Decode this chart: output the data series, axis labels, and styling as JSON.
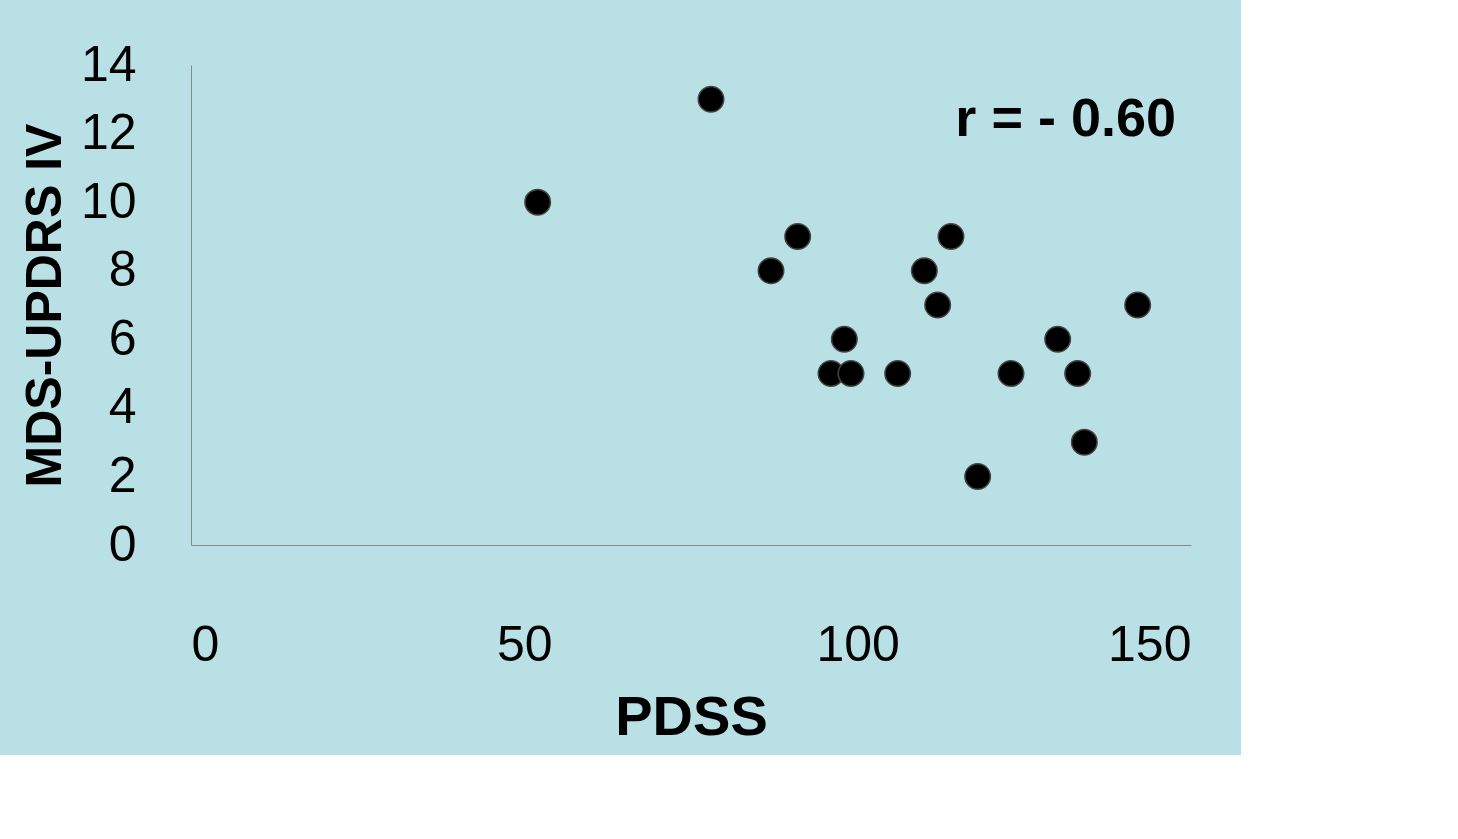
{
  "chart_data": {
    "type": "scatter",
    "xlabel": "PDSS",
    "ylabel": "MDS-UPDRS IV",
    "x": [
      52,
      78,
      91,
      87,
      98,
      96,
      99,
      106,
      110,
      112,
      114,
      118,
      123,
      130,
      133,
      134,
      142
    ],
    "values": [
      10,
      13,
      9,
      8,
      6,
      5,
      5,
      5,
      8,
      7,
      9,
      2,
      5,
      6,
      5,
      3,
      7
    ],
    "color": "#000000",
    "marker": "circle",
    "xlim": [
      0,
      150
    ],
    "xticks": [
      0,
      50,
      100,
      150
    ],
    "ylim": [
      0,
      14
    ],
    "yticks": [
      0,
      2,
      4,
      6,
      8,
      10,
      12,
      14
    ],
    "grid": false,
    "annotations": [
      "r = - 0.60"
    ]
  }
}
